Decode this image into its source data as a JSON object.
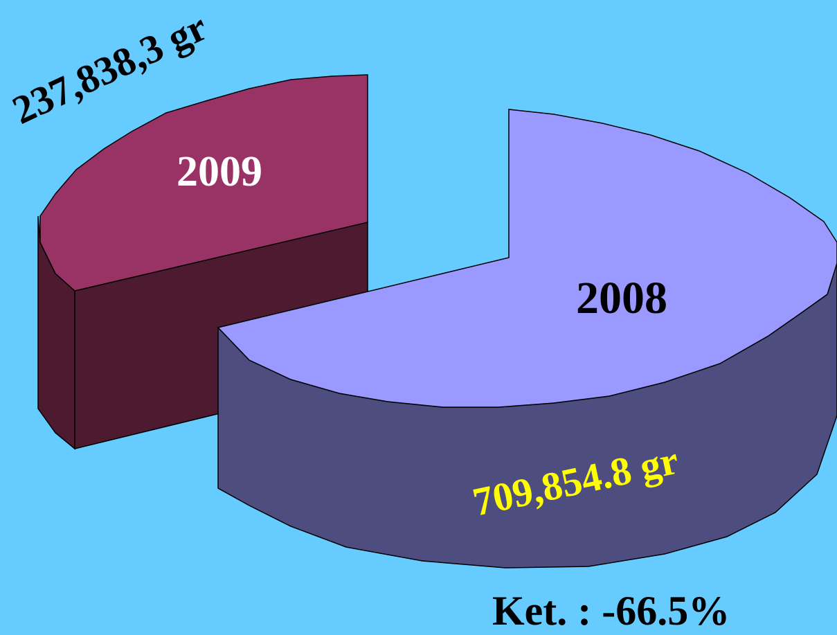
{
  "chart_data": {
    "type": "pie",
    "style": "3d-exploded",
    "slices": [
      {
        "label": "2009",
        "value": 237838.3,
        "value_label": "237,838,3 gr",
        "label_color": "#FFFFFF",
        "value_label_color": "#000000",
        "top_color": "#993366",
        "side_color": "#4D1A30"
      },
      {
        "label": "2008",
        "value": 709854.8,
        "value_label": "709,854.8 gr",
        "label_color": "#000000",
        "value_label_color": "#FFFF00",
        "top_color": "#9999FF",
        "side_color": "#4D4D80"
      }
    ],
    "annotation": "Ket. : -66.5%"
  },
  "background": "#66CCFF"
}
